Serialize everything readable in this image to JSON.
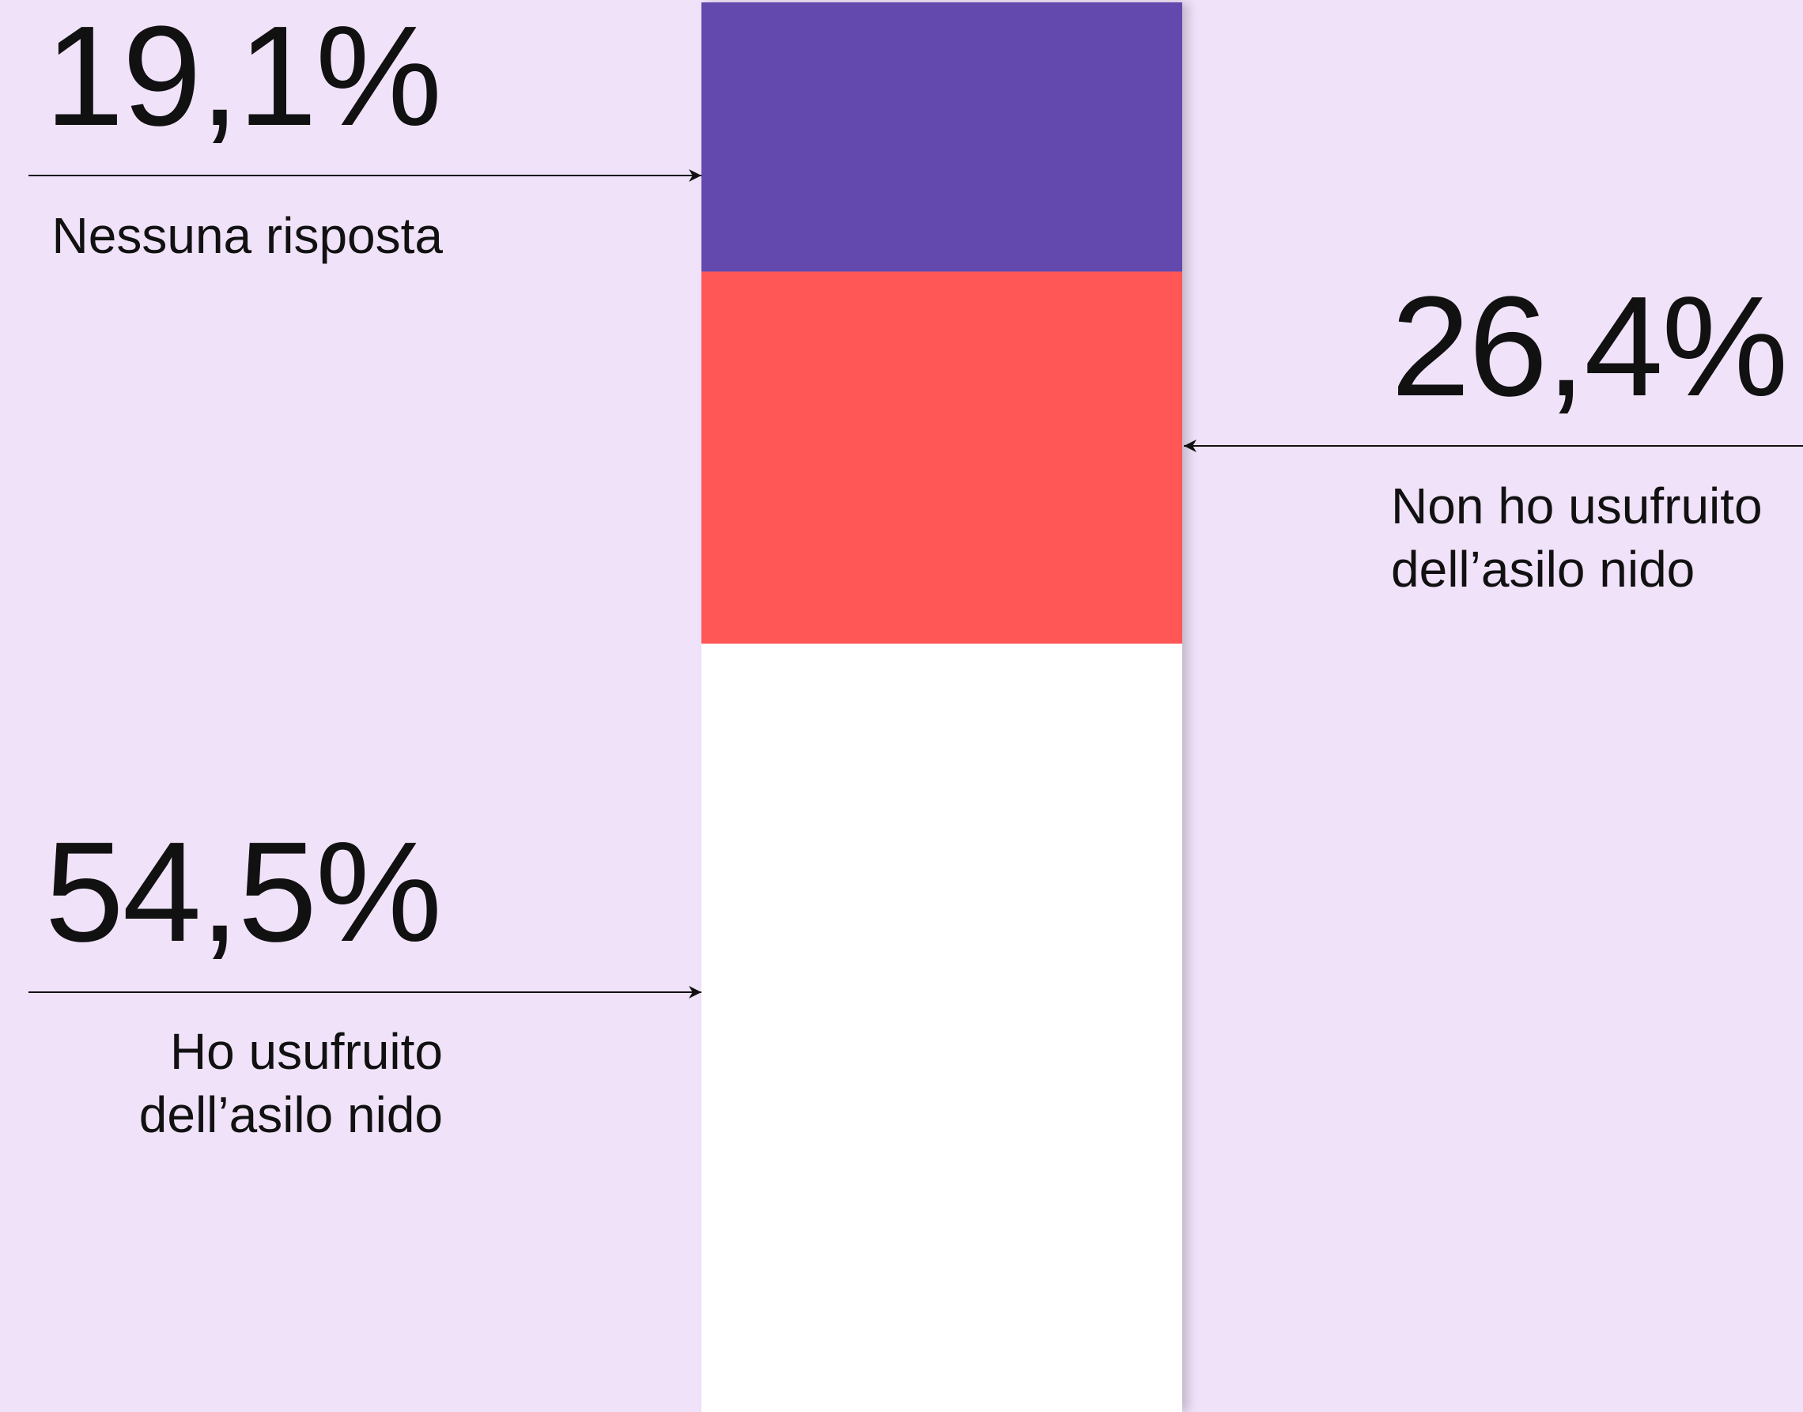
{
  "chart_data": {
    "type": "bar",
    "stacked": true,
    "series": [
      {
        "name": "Nessuna risposta",
        "color": "#634aad",
        "values": [
          19.1
        ],
        "value_labels": [
          "19,1%"
        ]
      },
      {
        "name": "Non ho usufruito\ndell’asilo nido",
        "color": "#ff5757",
        "values": [
          26.4
        ],
        "value_labels": [
          "26,4%"
        ]
      },
      {
        "name": "Ho usufruito\ndell’asilo nido",
        "color": "#ffffff",
        "values": [
          54.5
        ],
        "value_labels": [
          "54,5%"
        ]
      }
    ]
  }
}
